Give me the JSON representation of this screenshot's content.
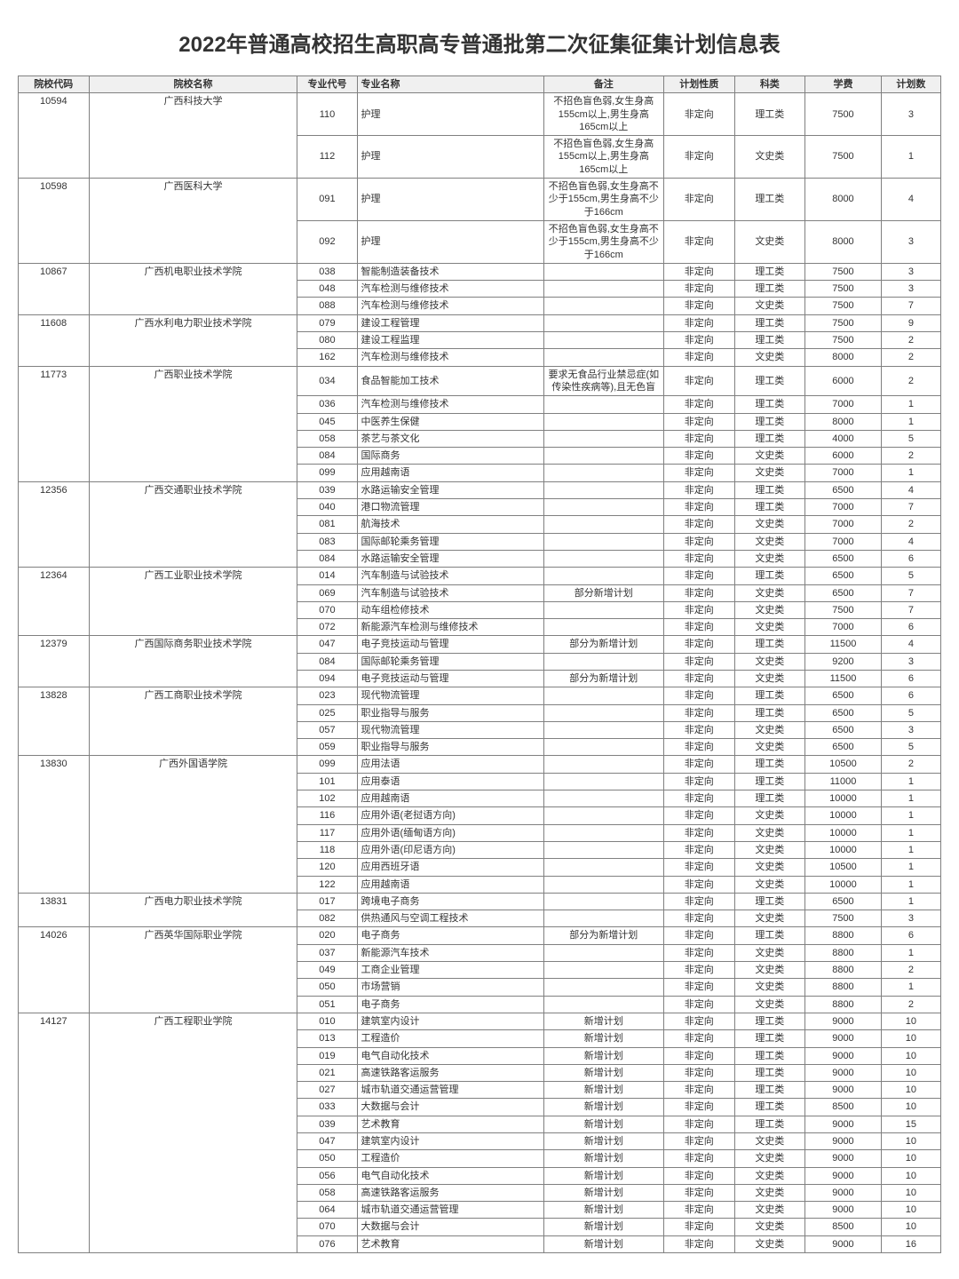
{
  "title": "2022年普通高校招生高职高专普通批第二次征集征集计划信息表",
  "headers": [
    "院校代码",
    "院校名称",
    "专业代号",
    "专业名称",
    "备注",
    "计划性质",
    "科类",
    "学费",
    "计划数"
  ],
  "groups": [
    {
      "code": "10594",
      "school": "广西科技大学",
      "rows": [
        {
          "mc": "110",
          "mn": "护理",
          "note": "不招色盲色弱,女生身高155cm以上,男生身高165cm以上",
          "plan": "非定向",
          "cat": "理工类",
          "fee": "7500",
          "cnt": "3"
        },
        {
          "mc": "112",
          "mn": "护理",
          "note": "不招色盲色弱,女生身高155cm以上,男生身高165cm以上",
          "plan": "非定向",
          "cat": "文史类",
          "fee": "7500",
          "cnt": "1"
        }
      ]
    },
    {
      "code": "10598",
      "school": "广西医科大学",
      "rows": [
        {
          "mc": "091",
          "mn": "护理",
          "note": "不招色盲色弱,女生身高不少于155cm,男生身高不少于166cm",
          "plan": "非定向",
          "cat": "理工类",
          "fee": "8000",
          "cnt": "4"
        },
        {
          "mc": "092",
          "mn": "护理",
          "note": "不招色盲色弱,女生身高不少于155cm,男生身高不少于166cm",
          "plan": "非定向",
          "cat": "文史类",
          "fee": "8000",
          "cnt": "3"
        }
      ]
    },
    {
      "code": "10867",
      "school": "广西机电职业技术学院",
      "rows": [
        {
          "mc": "038",
          "mn": "智能制造装备技术",
          "note": "",
          "plan": "非定向",
          "cat": "理工类",
          "fee": "7500",
          "cnt": "3"
        },
        {
          "mc": "048",
          "mn": "汽车检测与维修技术",
          "note": "",
          "plan": "非定向",
          "cat": "理工类",
          "fee": "7500",
          "cnt": "3"
        },
        {
          "mc": "088",
          "mn": "汽车检测与维修技术",
          "note": "",
          "plan": "非定向",
          "cat": "文史类",
          "fee": "7500",
          "cnt": "7"
        }
      ]
    },
    {
      "code": "11608",
      "school": "广西水利电力职业技术学院",
      "rows": [
        {
          "mc": "079",
          "mn": "建设工程管理",
          "note": "",
          "plan": "非定向",
          "cat": "理工类",
          "fee": "7500",
          "cnt": "9"
        },
        {
          "mc": "080",
          "mn": "建设工程监理",
          "note": "",
          "plan": "非定向",
          "cat": "理工类",
          "fee": "7500",
          "cnt": "2"
        },
        {
          "mc": "162",
          "mn": "汽车检测与维修技术",
          "note": "",
          "plan": "非定向",
          "cat": "文史类",
          "fee": "8000",
          "cnt": "2"
        }
      ]
    },
    {
      "code": "11773",
      "school": "广西职业技术学院",
      "rows": [
        {
          "mc": "034",
          "mn": "食品智能加工技术",
          "note": "要求无食品行业禁忌症(如传染性疾病等),且无色盲",
          "plan": "非定向",
          "cat": "理工类",
          "fee": "6000",
          "cnt": "2"
        },
        {
          "mc": "036",
          "mn": "汽车检测与维修技术",
          "note": "",
          "plan": "非定向",
          "cat": "理工类",
          "fee": "7000",
          "cnt": "1"
        },
        {
          "mc": "045",
          "mn": "中医养生保健",
          "note": "",
          "plan": "非定向",
          "cat": "理工类",
          "fee": "8000",
          "cnt": "1"
        },
        {
          "mc": "058",
          "mn": "茶艺与茶文化",
          "note": "",
          "plan": "非定向",
          "cat": "理工类",
          "fee": "4000",
          "cnt": "5"
        },
        {
          "mc": "084",
          "mn": "国际商务",
          "note": "",
          "plan": "非定向",
          "cat": "文史类",
          "fee": "6000",
          "cnt": "2"
        },
        {
          "mc": "099",
          "mn": "应用越南语",
          "note": "",
          "plan": "非定向",
          "cat": "文史类",
          "fee": "7000",
          "cnt": "1"
        }
      ]
    },
    {
      "code": "12356",
      "school": "广西交通职业技术学院",
      "rows": [
        {
          "mc": "039",
          "mn": "水路运输安全管理",
          "note": "",
          "plan": "非定向",
          "cat": "理工类",
          "fee": "6500",
          "cnt": "4"
        },
        {
          "mc": "040",
          "mn": "港口物流管理",
          "note": "",
          "plan": "非定向",
          "cat": "理工类",
          "fee": "7000",
          "cnt": "7"
        },
        {
          "mc": "081",
          "mn": "航海技术",
          "note": "",
          "plan": "非定向",
          "cat": "文史类",
          "fee": "7000",
          "cnt": "2"
        },
        {
          "mc": "083",
          "mn": "国际邮轮乘务管理",
          "note": "",
          "plan": "非定向",
          "cat": "文史类",
          "fee": "7000",
          "cnt": "4"
        },
        {
          "mc": "084",
          "mn": "水路运输安全管理",
          "note": "",
          "plan": "非定向",
          "cat": "文史类",
          "fee": "6500",
          "cnt": "6"
        }
      ]
    },
    {
      "code": "12364",
      "school": "广西工业职业技术学院",
      "rows": [
        {
          "mc": "014",
          "mn": "汽车制造与试验技术",
          "note": "",
          "plan": "非定向",
          "cat": "理工类",
          "fee": "6500",
          "cnt": "5"
        },
        {
          "mc": "069",
          "mn": "汽车制造与试验技术",
          "note": "部分新增计划",
          "plan": "非定向",
          "cat": "文史类",
          "fee": "6500",
          "cnt": "7"
        },
        {
          "mc": "070",
          "mn": "动车组检修技术",
          "note": "",
          "plan": "非定向",
          "cat": "文史类",
          "fee": "7500",
          "cnt": "7"
        },
        {
          "mc": "072",
          "mn": "新能源汽车检测与维修技术",
          "note": "",
          "plan": "非定向",
          "cat": "文史类",
          "fee": "7000",
          "cnt": "6"
        }
      ]
    },
    {
      "code": "12379",
      "school": "广西国际商务职业技术学院",
      "rows": [
        {
          "mc": "047",
          "mn": "电子竞技运动与管理",
          "note": "部分为新增计划",
          "plan": "非定向",
          "cat": "理工类",
          "fee": "11500",
          "cnt": "4"
        },
        {
          "mc": "084",
          "mn": "国际邮轮乘务管理",
          "note": "",
          "plan": "非定向",
          "cat": "文史类",
          "fee": "9200",
          "cnt": "3"
        },
        {
          "mc": "094",
          "mn": "电子竞技运动与管理",
          "note": "部分为新增计划",
          "plan": "非定向",
          "cat": "文史类",
          "fee": "11500",
          "cnt": "6"
        }
      ]
    },
    {
      "code": "13828",
      "school": "广西工商职业技术学院",
      "rows": [
        {
          "mc": "023",
          "mn": "现代物流管理",
          "note": "",
          "plan": "非定向",
          "cat": "理工类",
          "fee": "6500",
          "cnt": "6"
        },
        {
          "mc": "025",
          "mn": "职业指导与服务",
          "note": "",
          "plan": "非定向",
          "cat": "理工类",
          "fee": "6500",
          "cnt": "5"
        },
        {
          "mc": "057",
          "mn": "现代物流管理",
          "note": "",
          "plan": "非定向",
          "cat": "文史类",
          "fee": "6500",
          "cnt": "3"
        },
        {
          "mc": "059",
          "mn": "职业指导与服务",
          "note": "",
          "plan": "非定向",
          "cat": "文史类",
          "fee": "6500",
          "cnt": "5"
        }
      ]
    },
    {
      "code": "13830",
      "school": "广西外国语学院",
      "rows": [
        {
          "mc": "099",
          "mn": "应用法语",
          "note": "",
          "plan": "非定向",
          "cat": "理工类",
          "fee": "10500",
          "cnt": "2"
        },
        {
          "mc": "101",
          "mn": "应用泰语",
          "note": "",
          "plan": "非定向",
          "cat": "理工类",
          "fee": "11000",
          "cnt": "1"
        },
        {
          "mc": "102",
          "mn": "应用越南语",
          "note": "",
          "plan": "非定向",
          "cat": "理工类",
          "fee": "10000",
          "cnt": "1"
        },
        {
          "mc": "116",
          "mn": "应用外语(老挝语方向)",
          "note": "",
          "plan": "非定向",
          "cat": "文史类",
          "fee": "10000",
          "cnt": "1"
        },
        {
          "mc": "117",
          "mn": "应用外语(缅甸语方向)",
          "note": "",
          "plan": "非定向",
          "cat": "文史类",
          "fee": "10000",
          "cnt": "1"
        },
        {
          "mc": "118",
          "mn": "应用外语(印尼语方向)",
          "note": "",
          "plan": "非定向",
          "cat": "文史类",
          "fee": "10000",
          "cnt": "1"
        },
        {
          "mc": "120",
          "mn": "应用西班牙语",
          "note": "",
          "plan": "非定向",
          "cat": "文史类",
          "fee": "10500",
          "cnt": "1"
        },
        {
          "mc": "122",
          "mn": "应用越南语",
          "note": "",
          "plan": "非定向",
          "cat": "文史类",
          "fee": "10000",
          "cnt": "1"
        }
      ]
    },
    {
      "code": "13831",
      "school": "广西电力职业技术学院",
      "rows": [
        {
          "mc": "017",
          "mn": "跨境电子商务",
          "note": "",
          "plan": "非定向",
          "cat": "理工类",
          "fee": "6500",
          "cnt": "1"
        },
        {
          "mc": "082",
          "mn": "供热通风与空调工程技术",
          "note": "",
          "plan": "非定向",
          "cat": "文史类",
          "fee": "7500",
          "cnt": "3"
        }
      ]
    },
    {
      "code": "14026",
      "school": "广西英华国际职业学院",
      "rows": [
        {
          "mc": "020",
          "mn": "电子商务",
          "note": "部分为新增计划",
          "plan": "非定向",
          "cat": "理工类",
          "fee": "8800",
          "cnt": "6"
        },
        {
          "mc": "037",
          "mn": "新能源汽车技术",
          "note": "",
          "plan": "非定向",
          "cat": "文史类",
          "fee": "8800",
          "cnt": "1"
        },
        {
          "mc": "049",
          "mn": "工商企业管理",
          "note": "",
          "plan": "非定向",
          "cat": "文史类",
          "fee": "8800",
          "cnt": "2"
        },
        {
          "mc": "050",
          "mn": "市场营销",
          "note": "",
          "plan": "非定向",
          "cat": "文史类",
          "fee": "8800",
          "cnt": "1"
        },
        {
          "mc": "051",
          "mn": "电子商务",
          "note": "",
          "plan": "非定向",
          "cat": "文史类",
          "fee": "8800",
          "cnt": "2"
        }
      ]
    },
    {
      "code": "14127",
      "school": "广西工程职业学院",
      "rows": [
        {
          "mc": "010",
          "mn": "建筑室内设计",
          "note": "新增计划",
          "plan": "非定向",
          "cat": "理工类",
          "fee": "9000",
          "cnt": "10"
        },
        {
          "mc": "013",
          "mn": "工程造价",
          "note": "新增计划",
          "plan": "非定向",
          "cat": "理工类",
          "fee": "9000",
          "cnt": "10"
        },
        {
          "mc": "019",
          "mn": "电气自动化技术",
          "note": "新增计划",
          "plan": "非定向",
          "cat": "理工类",
          "fee": "9000",
          "cnt": "10"
        },
        {
          "mc": "021",
          "mn": "高速铁路客运服务",
          "note": "新增计划",
          "plan": "非定向",
          "cat": "理工类",
          "fee": "9000",
          "cnt": "10"
        },
        {
          "mc": "027",
          "mn": "城市轨道交通运营管理",
          "note": "新增计划",
          "plan": "非定向",
          "cat": "理工类",
          "fee": "9000",
          "cnt": "10"
        },
        {
          "mc": "033",
          "mn": "大数据与会计",
          "note": "新增计划",
          "plan": "非定向",
          "cat": "理工类",
          "fee": "8500",
          "cnt": "10"
        },
        {
          "mc": "039",
          "mn": "艺术教育",
          "note": "新增计划",
          "plan": "非定向",
          "cat": "理工类",
          "fee": "9000",
          "cnt": "15"
        },
        {
          "mc": "047",
          "mn": "建筑室内设计",
          "note": "新增计划",
          "plan": "非定向",
          "cat": "文史类",
          "fee": "9000",
          "cnt": "10"
        },
        {
          "mc": "050",
          "mn": "工程造价",
          "note": "新增计划",
          "plan": "非定向",
          "cat": "文史类",
          "fee": "9000",
          "cnt": "10"
        },
        {
          "mc": "056",
          "mn": "电气自动化技术",
          "note": "新增计划",
          "plan": "非定向",
          "cat": "文史类",
          "fee": "9000",
          "cnt": "10"
        },
        {
          "mc": "058",
          "mn": "高速铁路客运服务",
          "note": "新增计划",
          "plan": "非定向",
          "cat": "文史类",
          "fee": "9000",
          "cnt": "10"
        },
        {
          "mc": "064",
          "mn": "城市轨道交通运营管理",
          "note": "新增计划",
          "plan": "非定向",
          "cat": "文史类",
          "fee": "9000",
          "cnt": "10"
        },
        {
          "mc": "070",
          "mn": "大数据与会计",
          "note": "新增计划",
          "plan": "非定向",
          "cat": "文史类",
          "fee": "8500",
          "cnt": "10"
        },
        {
          "mc": "076",
          "mn": "艺术教育",
          "note": "新增计划",
          "plan": "非定向",
          "cat": "文史类",
          "fee": "9000",
          "cnt": "16"
        }
      ]
    }
  ]
}
